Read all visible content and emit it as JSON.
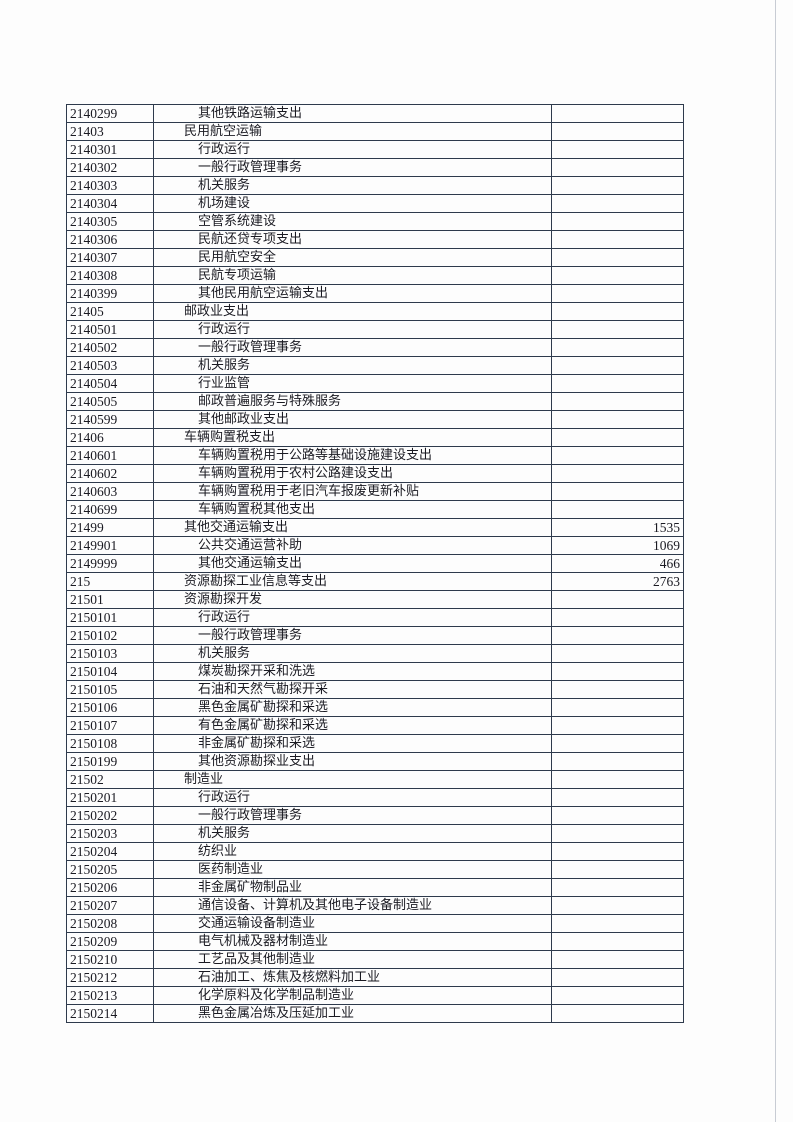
{
  "rows": [
    {
      "code": "2140299",
      "name": "其他铁路运输支出",
      "amount": ""
    },
    {
      "code": "21403",
      "name": "民用航空运输",
      "amount": ""
    },
    {
      "code": "2140301",
      "name": "行政运行",
      "amount": ""
    },
    {
      "code": "2140302",
      "name": "一般行政管理事务",
      "amount": ""
    },
    {
      "code": "2140303",
      "name": "机关服务",
      "amount": ""
    },
    {
      "code": "2140304",
      "name": "机场建设",
      "amount": ""
    },
    {
      "code": "2140305",
      "name": "空管系统建设",
      "amount": ""
    },
    {
      "code": "2140306",
      "name": "民航还贷专项支出",
      "amount": ""
    },
    {
      "code": "2140307",
      "name": "民用航空安全",
      "amount": ""
    },
    {
      "code": "2140308",
      "name": "民航专项运输",
      "amount": ""
    },
    {
      "code": "2140399",
      "name": "其他民用航空运输支出",
      "amount": ""
    },
    {
      "code": "21405",
      "name": "邮政业支出",
      "amount": ""
    },
    {
      "code": "2140501",
      "name": "行政运行",
      "amount": ""
    },
    {
      "code": "2140502",
      "name": "一般行政管理事务",
      "amount": ""
    },
    {
      "code": "2140503",
      "name": "机关服务",
      "amount": ""
    },
    {
      "code": "2140504",
      "name": "行业监管",
      "amount": ""
    },
    {
      "code": "2140505",
      "name": "邮政普遍服务与特殊服务",
      "amount": ""
    },
    {
      "code": "2140599",
      "name": "其他邮政业支出",
      "amount": ""
    },
    {
      "code": "21406",
      "name": "车辆购置税支出",
      "amount": ""
    },
    {
      "code": "2140601",
      "name": "车辆购置税用于公路等基础设施建设支出",
      "amount": ""
    },
    {
      "code": "2140602",
      "name": "车辆购置税用于农村公路建设支出",
      "amount": ""
    },
    {
      "code": "2140603",
      "name": "车辆购置税用于老旧汽车报废更新补贴",
      "amount": ""
    },
    {
      "code": "2140699",
      "name": "车辆购置税其他支出",
      "amount": ""
    },
    {
      "code": "21499",
      "name": "其他交通运输支出",
      "amount": "1535"
    },
    {
      "code": "2149901",
      "name": "公共交通运营补助",
      "amount": "1069"
    },
    {
      "code": "2149999",
      "name": "其他交通运输支出",
      "amount": "466"
    },
    {
      "code": "215",
      "name": "资源勘探工业信息等支出",
      "amount": "2763"
    },
    {
      "code": "21501",
      "name": "资源勘探开发",
      "amount": ""
    },
    {
      "code": "2150101",
      "name": "行政运行",
      "amount": ""
    },
    {
      "code": "2150102",
      "name": "一般行政管理事务",
      "amount": ""
    },
    {
      "code": "2150103",
      "name": "机关服务",
      "amount": ""
    },
    {
      "code": "2150104",
      "name": "煤炭勘探开采和洗选",
      "amount": ""
    },
    {
      "code": "2150105",
      "name": "石油和天然气勘探开采",
      "amount": ""
    },
    {
      "code": "2150106",
      "name": "黑色金属矿勘探和采选",
      "amount": ""
    },
    {
      "code": "2150107",
      "name": "有色金属矿勘探和采选",
      "amount": ""
    },
    {
      "code": "2150108",
      "name": "非金属矿勘探和采选",
      "amount": ""
    },
    {
      "code": "2150199",
      "name": "其他资源勘探业支出",
      "amount": ""
    },
    {
      "code": "21502",
      "name": "制造业",
      "amount": ""
    },
    {
      "code": "2150201",
      "name": "行政运行",
      "amount": ""
    },
    {
      "code": "2150202",
      "name": "一般行政管理事务",
      "amount": ""
    },
    {
      "code": "2150203",
      "name": "机关服务",
      "amount": ""
    },
    {
      "code": "2150204",
      "name": "纺织业",
      "amount": ""
    },
    {
      "code": "2150205",
      "name": "医药制造业",
      "amount": ""
    },
    {
      "code": "2150206",
      "name": "非金属矿物制品业",
      "amount": ""
    },
    {
      "code": "2150207",
      "name": "通信设备、计算机及其他电子设备制造业",
      "amount": ""
    },
    {
      "code": "2150208",
      "name": "交通运输设备制造业",
      "amount": ""
    },
    {
      "code": "2150209",
      "name": "电气机械及器材制造业",
      "amount": ""
    },
    {
      "code": "2150210",
      "name": "工艺品及其他制造业",
      "amount": ""
    },
    {
      "code": "2150212",
      "name": "石油加工、炼焦及核燃料加工业",
      "amount": ""
    },
    {
      "code": "2150213",
      "name": "化学原料及化学制品制造业",
      "amount": ""
    },
    {
      "code": "2150214",
      "name": "黑色金属冶炼及压延加工业",
      "amount": ""
    }
  ]
}
